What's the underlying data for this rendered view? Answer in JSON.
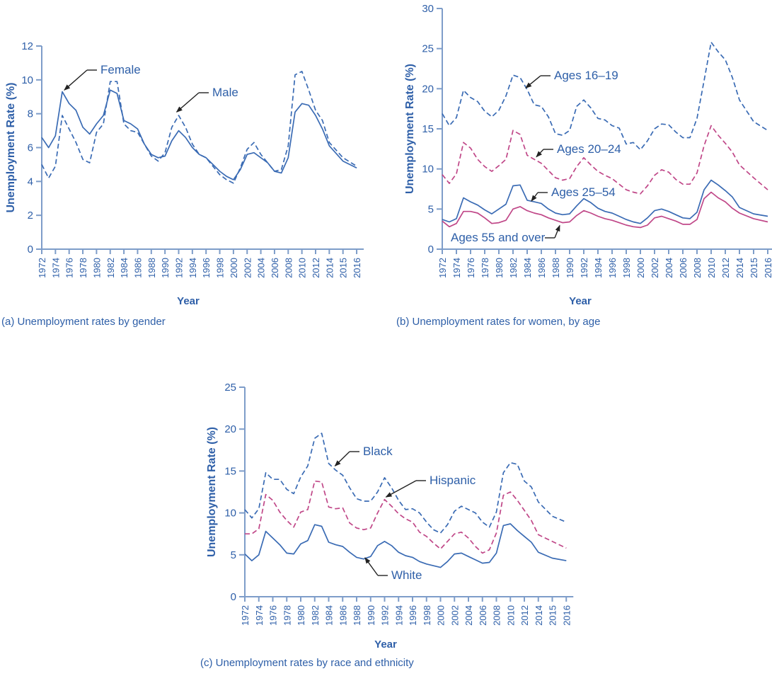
{
  "figure": {
    "background": "#ffffff",
    "colors": {
      "blue_line": "#3a6bb4",
      "pink_line": "#c04788",
      "text": "#2e5fa8",
      "axis": "#7e9dc9",
      "arrow": "#222222"
    },
    "x_tick_labels": [
      "1972",
      "1974",
      "1976",
      "1978",
      "1980",
      "1982",
      "1984",
      "1986",
      "1988",
      "1990",
      "1992",
      "1994",
      "1996",
      "1998",
      "2000",
      "2002",
      "2004",
      "2006",
      "2008",
      "2010",
      "2012",
      "2014",
      "2015",
      "2016"
    ]
  },
  "chart_data": [
    {
      "id": "gender",
      "type": "line",
      "caption": "(a) Unemployment rates by gender",
      "xlabel": "Year",
      "ylabel": "Unemployment Rate (%)",
      "ylim": [
        0,
        12
      ],
      "y_ticks": [
        0,
        2,
        4,
        6,
        8,
        10,
        12
      ],
      "x_start_year": 1972,
      "x_end_year": 2016,
      "grid": false,
      "series": [
        {
          "name": "Female",
          "line": "solid",
          "color_key": "blue_line",
          "values": [
            6.6,
            6.0,
            6.7,
            9.3,
            8.6,
            8.2,
            7.2,
            6.8,
            7.4,
            7.9,
            9.4,
            9.2,
            7.6,
            7.4,
            7.1,
            6.2,
            5.6,
            5.4,
            5.5,
            6.4,
            7.0,
            6.6,
            6.0,
            5.6,
            5.4,
            5.0,
            4.6,
            4.3,
            4.1,
            4.7,
            5.6,
            5.7,
            5.4,
            5.1,
            4.6,
            4.5,
            5.4,
            8.1,
            8.6,
            8.5,
            7.9,
            7.1,
            6.1,
            5.2,
            4.8
          ]
        },
        {
          "name": "Male",
          "line": "dashed",
          "color_key": "blue_line",
          "values": [
            5.0,
            4.2,
            4.9,
            7.9,
            7.1,
            6.3,
            5.3,
            5.1,
            6.9,
            7.4,
            9.9,
            9.9,
            7.4,
            7.0,
            6.9,
            6.2,
            5.5,
            5.2,
            5.7,
            7.2,
            7.9,
            7.2,
            6.2,
            5.6,
            5.4,
            4.9,
            4.4,
            4.1,
            3.9,
            4.8,
            5.9,
            6.3,
            5.6,
            5.1,
            4.6,
            4.7,
            6.1,
            10.3,
            10.5,
            9.4,
            8.2,
            7.6,
            6.3,
            5.4,
            4.9
          ]
        }
      ],
      "annotations": [
        {
          "text": "Female",
          "year": 1975.3,
          "value": 9.4
        },
        {
          "text": "Male",
          "year": 1991.7,
          "value": 8.1
        }
      ]
    },
    {
      "id": "women_by_age",
      "type": "line",
      "caption": "(b) Unemployment rates for women, by age",
      "xlabel": "Year",
      "ylabel": "Unemployment Rate (%)",
      "ylim": [
        0,
        30
      ],
      "y_ticks": [
        0,
        5,
        10,
        15,
        20,
        25,
        30
      ],
      "x_start_year": 1972,
      "x_end_year": 2016,
      "grid": false,
      "series": [
        {
          "name": "Ages 16–19",
          "line": "dashed",
          "color_key": "blue_line",
          "values": [
            16.9,
            15.4,
            16.4,
            19.8,
            18.9,
            18.4,
            17.2,
            16.5,
            17.3,
            19.1,
            21.7,
            21.4,
            19.9,
            18.0,
            17.8,
            16.5,
            14.4,
            14.2,
            14.8,
            17.8,
            18.6,
            17.6,
            16.3,
            16.1,
            15.4,
            15.1,
            13.1,
            13.3,
            12.4,
            13.5,
            15.0,
            15.6,
            15.5,
            14.6,
            13.9,
            13.9,
            16.3,
            21.0,
            25.8,
            24.6,
            23.6,
            21.4,
            18.6,
            15.9,
            14.8
          ]
        },
        {
          "name": "Ages 20–24",
          "line": "dashed",
          "color_key": "pink_line",
          "values": [
            9.3,
            8.2,
            9.4,
            13.3,
            12.6,
            11.2,
            10.3,
            9.7,
            10.4,
            11.2,
            14.8,
            14.3,
            11.7,
            11.2,
            10.7,
            9.8,
            8.9,
            8.6,
            8.8,
            10.3,
            11.4,
            10.5,
            9.7,
            9.2,
            8.8,
            8.1,
            7.4,
            7.1,
            6.9,
            7.9,
            9.2,
            9.9,
            9.6,
            8.7,
            8.1,
            8.1,
            9.5,
            12.9,
            15.4,
            14.2,
            13.2,
            12.1,
            10.5,
            8.9,
            7.4
          ]
        },
        {
          "name": "Ages 25–54",
          "line": "solid",
          "color_key": "blue_line",
          "values": [
            3.7,
            3.4,
            3.8,
            6.4,
            5.9,
            5.5,
            4.9,
            4.4,
            5.0,
            5.6,
            7.9,
            8.0,
            6.1,
            5.9,
            5.7,
            5.0,
            4.5,
            4.3,
            4.4,
            5.4,
            6.3,
            5.8,
            5.1,
            4.7,
            4.5,
            4.1,
            3.7,
            3.4,
            3.2,
            3.9,
            4.8,
            5.0,
            4.7,
            4.3,
            3.9,
            3.8,
            4.6,
            7.4,
            8.6,
            8.0,
            7.3,
            6.5,
            5.2,
            4.4,
            4.1
          ]
        },
        {
          "name": "Ages 55 and over",
          "line": "solid",
          "color_key": "pink_line",
          "values": [
            3.5,
            2.8,
            3.2,
            4.7,
            4.7,
            4.5,
            3.9,
            3.2,
            3.3,
            3.6,
            5.0,
            5.3,
            4.8,
            4.5,
            4.3,
            3.9,
            3.6,
            3.3,
            3.4,
            4.2,
            4.8,
            4.5,
            4.1,
            3.8,
            3.6,
            3.3,
            3.0,
            2.8,
            2.7,
            3.0,
            3.9,
            4.1,
            3.8,
            3.5,
            3.1,
            3.1,
            3.7,
            6.3,
            7.1,
            6.4,
            5.9,
            5.1,
            4.5,
            3.8,
            3.4
          ]
        }
      ],
      "annotations": [
        {
          "text": "Ages 16–19",
          "year": 1983.8,
          "value": 20.1
        },
        {
          "text": "Ages 20–24",
          "year": 1985.3,
          "value": 11.5
        },
        {
          "text": "Ages 25–54",
          "year": 1984.6,
          "value": 6.0
        },
        {
          "text": "Ages 55 and over",
          "year": 1988.6,
          "value": 2.95
        }
      ]
    },
    {
      "id": "race_ethnicity",
      "type": "line",
      "caption": "(c) Unemployment rates by race and ethnicity",
      "xlabel": "Year",
      "ylabel": "Unemployment Rate (%)",
      "ylim": [
        0,
        25
      ],
      "y_ticks": [
        0,
        5,
        10,
        15,
        20,
        25
      ],
      "x_start_year": 1972,
      "x_end_year": 2016,
      "grid": false,
      "series": [
        {
          "name": "Black",
          "line": "dashed",
          "color_key": "blue_line",
          "values": [
            10.4,
            9.4,
            10.5,
            14.8,
            14.0,
            14.0,
            12.8,
            12.3,
            14.3,
            15.6,
            18.9,
            19.5,
            15.9,
            15.1,
            14.5,
            13.0,
            11.7,
            11.4,
            11.4,
            12.5,
            14.2,
            13.0,
            11.5,
            10.4,
            10.5,
            10.0,
            8.9,
            8.0,
            7.6,
            8.6,
            10.2,
            10.8,
            10.4,
            10.0,
            8.9,
            8.3,
            10.1,
            14.8,
            16.0,
            15.8,
            13.8,
            13.1,
            11.3,
            9.6,
            8.9
          ]
        },
        {
          "name": "Hispanic",
          "line": "dashed",
          "color_key": "pink_line",
          "values": [
            7.5,
            7.5,
            8.1,
            12.2,
            11.5,
            10.1,
            9.1,
            8.3,
            10.1,
            10.4,
            13.8,
            13.7,
            10.7,
            10.5,
            10.6,
            8.8,
            8.2,
            8.0,
            8.2,
            10.0,
            11.6,
            10.8,
            9.9,
            9.3,
            8.9,
            7.7,
            7.2,
            6.4,
            5.7,
            6.6,
            7.5,
            7.7,
            7.0,
            6.0,
            5.2,
            5.6,
            7.6,
            12.1,
            12.5,
            11.5,
            10.3,
            9.1,
            7.4,
            6.6,
            5.8
          ]
        },
        {
          "name": "White",
          "line": "solid",
          "color_key": "blue_line",
          "values": [
            5.1,
            4.3,
            5.0,
            7.8,
            7.0,
            6.2,
            5.2,
            5.1,
            6.3,
            6.7,
            8.6,
            8.4,
            6.5,
            6.2,
            6.0,
            5.3,
            4.7,
            4.5,
            4.8,
            6.1,
            6.6,
            6.1,
            5.3,
            4.9,
            4.7,
            4.2,
            3.9,
            3.7,
            3.5,
            4.2,
            5.1,
            5.2,
            4.8,
            4.4,
            4.0,
            4.1,
            5.2,
            8.5,
            8.7,
            7.9,
            7.2,
            6.5,
            5.3,
            4.6,
            4.3
          ]
        }
      ],
      "annotations": [
        {
          "text": "Black",
          "year": 1984.9,
          "value": 15.6
        },
        {
          "text": "Hispanic",
          "year": 1992.2,
          "value": 11.9
        },
        {
          "text": "White",
          "year": 1989.2,
          "value": 4.65
        }
      ]
    }
  ]
}
